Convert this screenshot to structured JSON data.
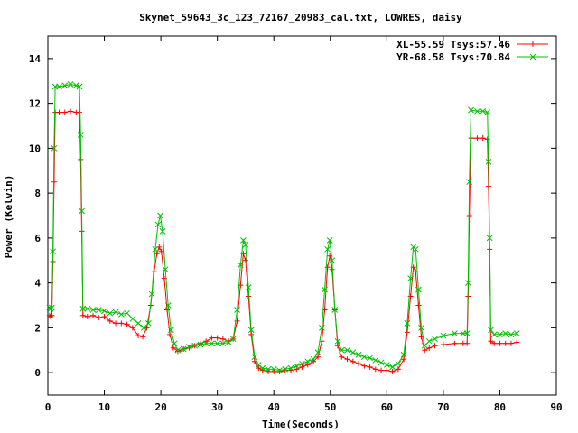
{
  "chart_data": {
    "type": "line",
    "title": "Skynet_59643_3c_123_72167_20983_cal.txt, LOWRES, daisy",
    "xlabel": "Time(Seconds)",
    "ylabel": "Power (Kelvin)",
    "xlim": [
      0,
      90
    ],
    "ylim": [
      -1,
      15
    ],
    "xticks": [
      0,
      10,
      20,
      30,
      40,
      50,
      60,
      70,
      80,
      90
    ],
    "yticks": [
      0,
      2,
      4,
      6,
      8,
      10,
      12,
      14
    ],
    "grid": false,
    "legend_position": "top-right",
    "series": [
      {
        "name": "XL-55.59 Tsys:57.46",
        "color": "#ff0000",
        "marker": "plus",
        "points": [
          [
            0.3,
            2.55
          ],
          [
            0.5,
            2.5
          ],
          [
            0.7,
            2.55
          ],
          [
            0.9,
            4.95
          ],
          [
            1.1,
            8.5
          ],
          [
            1.3,
            11.6
          ],
          [
            2,
            11.6
          ],
          [
            3,
            11.6
          ],
          [
            4,
            11.65
          ],
          [
            5,
            11.6
          ],
          [
            5.6,
            11.6
          ],
          [
            5.8,
            9.5
          ],
          [
            6.0,
            6.3
          ],
          [
            6.2,
            2.55
          ],
          [
            7,
            2.5
          ],
          [
            8,
            2.55
          ],
          [
            9,
            2.45
          ],
          [
            10,
            2.5
          ],
          [
            11,
            2.3
          ],
          [
            12,
            2.2
          ],
          [
            13,
            2.2
          ],
          [
            14,
            2.15
          ],
          [
            15,
            2.0
          ],
          [
            16,
            1.65
          ],
          [
            16.8,
            1.6
          ],
          [
            17.5,
            2.0
          ],
          [
            18.2,
            3.0
          ],
          [
            18.8,
            4.5
          ],
          [
            19.3,
            5.3
          ],
          [
            19.7,
            5.6
          ],
          [
            20.1,
            5.4
          ],
          [
            20.6,
            4.2
          ],
          [
            21.1,
            2.8
          ],
          [
            21.6,
            1.7
          ],
          [
            22.2,
            1.1
          ],
          [
            23,
            0.95
          ],
          [
            24,
            1.05
          ],
          [
            25,
            1.1
          ],
          [
            26,
            1.2
          ],
          [
            27,
            1.3
          ],
          [
            28,
            1.4
          ],
          [
            29,
            1.55
          ],
          [
            30,
            1.55
          ],
          [
            31,
            1.5
          ],
          [
            32,
            1.4
          ],
          [
            32.8,
            1.5
          ],
          [
            33.5,
            2.3
          ],
          [
            34.1,
            3.9
          ],
          [
            34.6,
            5.3
          ],
          [
            35.0,
            5.0
          ],
          [
            35.5,
            3.4
          ],
          [
            36.0,
            1.7
          ],
          [
            36.6,
            0.5
          ],
          [
            37.3,
            0.2
          ],
          [
            38,
            0.1
          ],
          [
            39,
            0.05
          ],
          [
            40,
            0.05
          ],
          [
            41,
            0.05
          ],
          [
            42,
            0.1
          ],
          [
            43,
            0.1
          ],
          [
            44,
            0.15
          ],
          [
            45,
            0.25
          ],
          [
            46,
            0.35
          ],
          [
            47,
            0.5
          ],
          [
            47.8,
            0.7
          ],
          [
            48.5,
            1.4
          ],
          [
            49.0,
            2.8
          ],
          [
            49.5,
            4.7
          ],
          [
            49.9,
            5.2
          ],
          [
            50.3,
            4.6
          ],
          [
            50.8,
            2.8
          ],
          [
            51.3,
            1.2
          ],
          [
            52,
            0.7
          ],
          [
            53,
            0.6
          ],
          [
            54,
            0.5
          ],
          [
            55,
            0.4
          ],
          [
            56,
            0.3
          ],
          [
            57,
            0.25
          ],
          [
            58,
            0.15
          ],
          [
            59,
            0.1
          ],
          [
            60,
            0.1
          ],
          [
            61,
            0.05
          ],
          [
            62,
            0.15
          ],
          [
            63,
            0.6
          ],
          [
            63.6,
            1.8
          ],
          [
            64.2,
            3.4
          ],
          [
            64.7,
            4.7
          ],
          [
            65.1,
            4.5
          ],
          [
            65.6,
            3.0
          ],
          [
            66.1,
            1.6
          ],
          [
            66.7,
            1.0
          ],
          [
            67.5,
            1.1
          ],
          [
            68.5,
            1.2
          ],
          [
            70,
            1.25
          ],
          [
            72,
            1.3
          ],
          [
            73.5,
            1.3
          ],
          [
            74.2,
            1.3
          ],
          [
            74.4,
            3.4
          ],
          [
            74.6,
            7.0
          ],
          [
            74.9,
            10.45
          ],
          [
            76,
            10.45
          ],
          [
            77,
            10.45
          ],
          [
            77.8,
            10.4
          ],
          [
            78.0,
            8.3
          ],
          [
            78.2,
            5.5
          ],
          [
            78.4,
            1.4
          ],
          [
            79,
            1.3
          ],
          [
            80,
            1.3
          ],
          [
            81,
            1.3
          ],
          [
            82,
            1.3
          ],
          [
            83,
            1.35
          ]
        ]
      },
      {
        "name": "YR-68.58 Tsys:70.84",
        "color": "#00c000",
        "marker": "cross",
        "points": [
          [
            0.3,
            2.9
          ],
          [
            0.5,
            2.85
          ],
          [
            0.7,
            2.9
          ],
          [
            0.9,
            5.4
          ],
          [
            1.1,
            10.0
          ],
          [
            1.3,
            12.75
          ],
          [
            2,
            12.75
          ],
          [
            3,
            12.8
          ],
          [
            4,
            12.85
          ],
          [
            5,
            12.8
          ],
          [
            5.6,
            12.75
          ],
          [
            5.8,
            10.6
          ],
          [
            6.0,
            7.2
          ],
          [
            6.2,
            2.85
          ],
          [
            7,
            2.85
          ],
          [
            8,
            2.8
          ],
          [
            9,
            2.8
          ],
          [
            10,
            2.75
          ],
          [
            11,
            2.65
          ],
          [
            12,
            2.7
          ],
          [
            13,
            2.6
          ],
          [
            14,
            2.65
          ],
          [
            15,
            2.4
          ],
          [
            16,
            2.2
          ],
          [
            17,
            2.0
          ],
          [
            17.8,
            2.2
          ],
          [
            18.4,
            3.5
          ],
          [
            19.0,
            5.5
          ],
          [
            19.5,
            6.6
          ],
          [
            19.9,
            7.0
          ],
          [
            20.3,
            6.3
          ],
          [
            20.8,
            4.6
          ],
          [
            21.3,
            3.0
          ],
          [
            21.8,
            1.9
          ],
          [
            22.4,
            1.3
          ],
          [
            23,
            1.0
          ],
          [
            24,
            1.05
          ],
          [
            25,
            1.15
          ],
          [
            26,
            1.2
          ],
          [
            27,
            1.25
          ],
          [
            28,
            1.3
          ],
          [
            29,
            1.3
          ],
          [
            30,
            1.3
          ],
          [
            31,
            1.3
          ],
          [
            32,
            1.35
          ],
          [
            32.8,
            1.5
          ],
          [
            33.5,
            2.8
          ],
          [
            34.1,
            4.8
          ],
          [
            34.6,
            5.9
          ],
          [
            35.0,
            5.7
          ],
          [
            35.5,
            3.8
          ],
          [
            36.0,
            1.9
          ],
          [
            36.6,
            0.7
          ],
          [
            37.3,
            0.35
          ],
          [
            38,
            0.2
          ],
          [
            39,
            0.15
          ],
          [
            40,
            0.15
          ],
          [
            41,
            0.1
          ],
          [
            42,
            0.15
          ],
          [
            43,
            0.2
          ],
          [
            44,
            0.3
          ],
          [
            45,
            0.4
          ],
          [
            46,
            0.5
          ],
          [
            47,
            0.6
          ],
          [
            47.8,
            0.9
          ],
          [
            48.5,
            2.0
          ],
          [
            49.0,
            3.7
          ],
          [
            49.5,
            5.5
          ],
          [
            49.9,
            5.9
          ],
          [
            50.3,
            5.0
          ],
          [
            50.8,
            2.8
          ],
          [
            51.3,
            1.4
          ],
          [
            52,
            1.0
          ],
          [
            53,
            1.0
          ],
          [
            54,
            0.9
          ],
          [
            55,
            0.8
          ],
          [
            56,
            0.7
          ],
          [
            57,
            0.65
          ],
          [
            58,
            0.55
          ],
          [
            59,
            0.45
          ],
          [
            60,
            0.35
          ],
          [
            61,
            0.25
          ],
          [
            62,
            0.4
          ],
          [
            63,
            0.8
          ],
          [
            63.6,
            2.2
          ],
          [
            64.2,
            4.2
          ],
          [
            64.7,
            5.6
          ],
          [
            65.1,
            5.5
          ],
          [
            65.6,
            3.7
          ],
          [
            66.1,
            2.0
          ],
          [
            66.7,
            1.2
          ],
          [
            67.5,
            1.4
          ],
          [
            68.5,
            1.5
          ],
          [
            70,
            1.65
          ],
          [
            72,
            1.75
          ],
          [
            73.5,
            1.75
          ],
          [
            74.2,
            1.75
          ],
          [
            74.4,
            4.0
          ],
          [
            74.6,
            8.5
          ],
          [
            74.9,
            11.7
          ],
          [
            76,
            11.65
          ],
          [
            77,
            11.65
          ],
          [
            77.8,
            11.6
          ],
          [
            78.0,
            9.4
          ],
          [
            78.2,
            6.0
          ],
          [
            78.4,
            1.9
          ],
          [
            79,
            1.7
          ],
          [
            80,
            1.7
          ],
          [
            81,
            1.75
          ],
          [
            82,
            1.7
          ],
          [
            83,
            1.75
          ]
        ]
      }
    ]
  }
}
